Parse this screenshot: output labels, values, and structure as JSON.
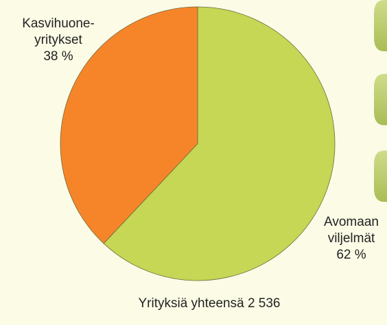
{
  "chart_data": {
    "type": "pie",
    "categories": [
      [
        "Avomaan",
        "viljelmät"
      ],
      [
        "Kasvihuone-",
        "yritykset"
      ]
    ],
    "values": [
      62,
      38
    ],
    "value_labels": [
      "62 %",
      "38 %"
    ],
    "colors": [
      "#c6d655",
      "#f6852a"
    ],
    "note": "Yrityksiä yhteensä 2 536"
  }
}
